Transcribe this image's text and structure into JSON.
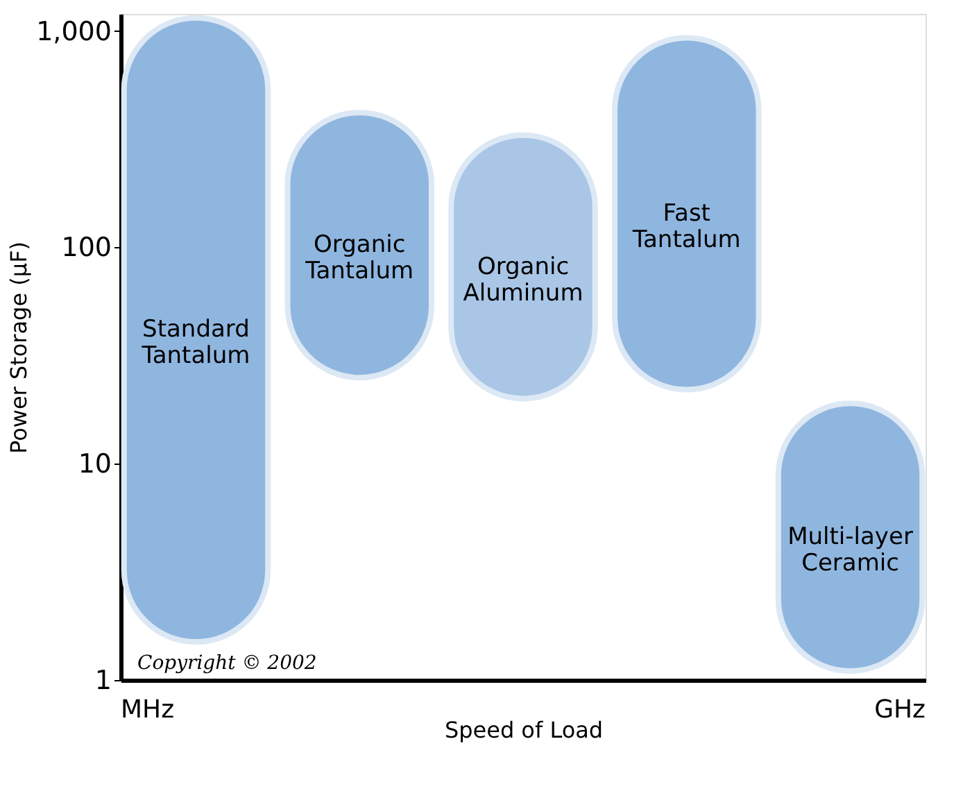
{
  "chart_data": {
    "type": "bar",
    "xlabel": "Speed of Load",
    "ylabel": "Power Storage (µF)",
    "categories": [
      "Standard Tantalum",
      "Organic Tantalum",
      "Organic Aluminum",
      "Fast Tantalum",
      "Multi-layer Ceramic"
    ],
    "base": [
      1.5,
      25,
      20,
      22,
      1.1
    ],
    "values": [
      1148.5,
      395,
      310,
      908,
      17.9
    ],
    "colors": [
      "#8fb6df",
      "#8fb6df",
      "#a9c6e6",
      "#8fb6df",
      "#8fb6df"
    ],
    "log": "y",
    "ylim": [
      1,
      1200
    ],
    "yticks": [
      1,
      10,
      100,
      {
        "value": 1000,
        "label": "1,000"
      }
    ],
    "grid": false,
    "legend": false,
    "tick_labels": "y",
    "annotations": [
      "MHz",
      "GHz",
      "Copyright © 2002"
    ]
  }
}
